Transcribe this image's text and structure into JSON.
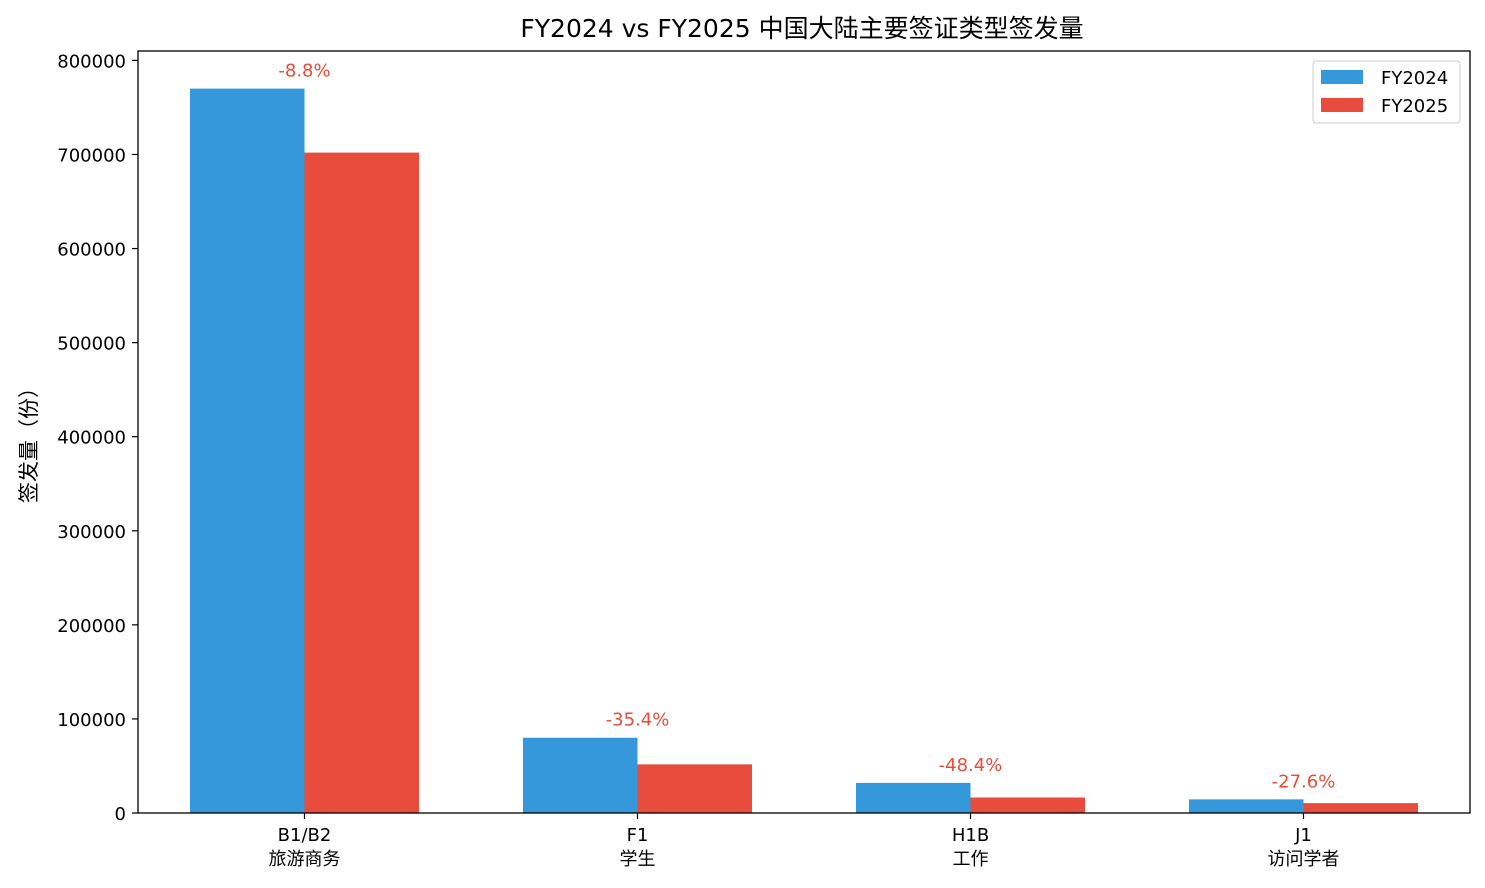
{
  "chart_data": {
    "type": "bar",
    "title": "FY2024 vs FY2025 中国大陆主要签证类型签发量",
    "xlabel": "",
    "ylabel": "签发量（份）",
    "ylim": [
      0,
      810000
    ],
    "yticks": [
      0,
      100000,
      200000,
      300000,
      400000,
      500000,
      600000,
      700000,
      800000
    ],
    "categories": [
      {
        "code": "B1/B2",
        "desc": "旅游商务"
      },
      {
        "code": "F1",
        "desc": "学生"
      },
      {
        "code": "H1B",
        "desc": "工作"
      },
      {
        "code": "J1",
        "desc": "访问学者"
      }
    ],
    "series": [
      {
        "name": "FY2024",
        "color": "#3498db",
        "values": [
          770000,
          80000,
          32000,
          14500
        ]
      },
      {
        "name": "FY2025",
        "color": "#e74c3c",
        "values": [
          702000,
          51700,
          16500,
          10500
        ]
      }
    ],
    "change_labels": [
      "-8.8%",
      "-35.4%",
      "-48.4%",
      "-27.6%"
    ],
    "change_label_color": "#e74c3c",
    "legend": "top-right",
    "grid": false
  }
}
